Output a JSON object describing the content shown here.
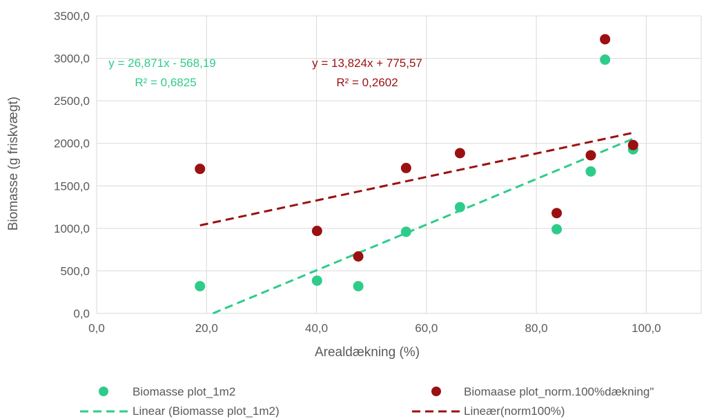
{
  "chart_data": {
    "type": "scatter",
    "xlabel": "Arealdækning (%)",
    "ylabel": "Biomasse (g friskvægt)",
    "xlim": [
      0,
      110
    ],
    "ylim": [
      0,
      3500
    ],
    "x_ticks": [
      "0,0",
      "20,0",
      "40,0",
      "60,0",
      "80,0",
      "100,0"
    ],
    "y_ticks": [
      "0,0",
      "500,0",
      "1000,0",
      "1500,0",
      "2000,0",
      "2500,0",
      "3000,0",
      "3500,0"
    ],
    "grid": true,
    "legend_position": "bottom",
    "series": [
      {
        "name": "Biomasse plot_1m2",
        "color": "#2ecc8a",
        "x": [
          18.8,
          40.1,
          47.6,
          56.3,
          66.1,
          83.7,
          89.9,
          92.5,
          97.6
        ],
        "y": [
          320,
          385,
          320,
          960,
          1250,
          990,
          1670,
          2985,
          1930
        ]
      },
      {
        "name": "Biomaase plot_norm.100%dækning\"",
        "color": "#9b1010",
        "x": [
          18.8,
          40.1,
          47.6,
          56.3,
          66.1,
          83.7,
          89.9,
          92.5,
          97.6
        ],
        "y": [
          1700,
          970,
          670,
          1710,
          1885,
          1180,
          1860,
          3225,
          1980
        ]
      }
    ],
    "trendlines": [
      {
        "name": "Linear (Biomasse plot_1m2)",
        "color": "#2ecc8a",
        "slope": 26.871,
        "intercept": -568.19,
        "x_range": [
          21.15,
          97.6
        ],
        "equation": "y = 26,871x - 568,19",
        "r2": "R² = 0,6825"
      },
      {
        "name": "Lineær(norm100%)",
        "color": "#9b1010",
        "slope": 13.824,
        "intercept": 775.57,
        "x_range": [
          18.8,
          97.6
        ],
        "equation": "y = 13,824x + 775,57",
        "r2": "R² = 0,2602"
      }
    ]
  }
}
